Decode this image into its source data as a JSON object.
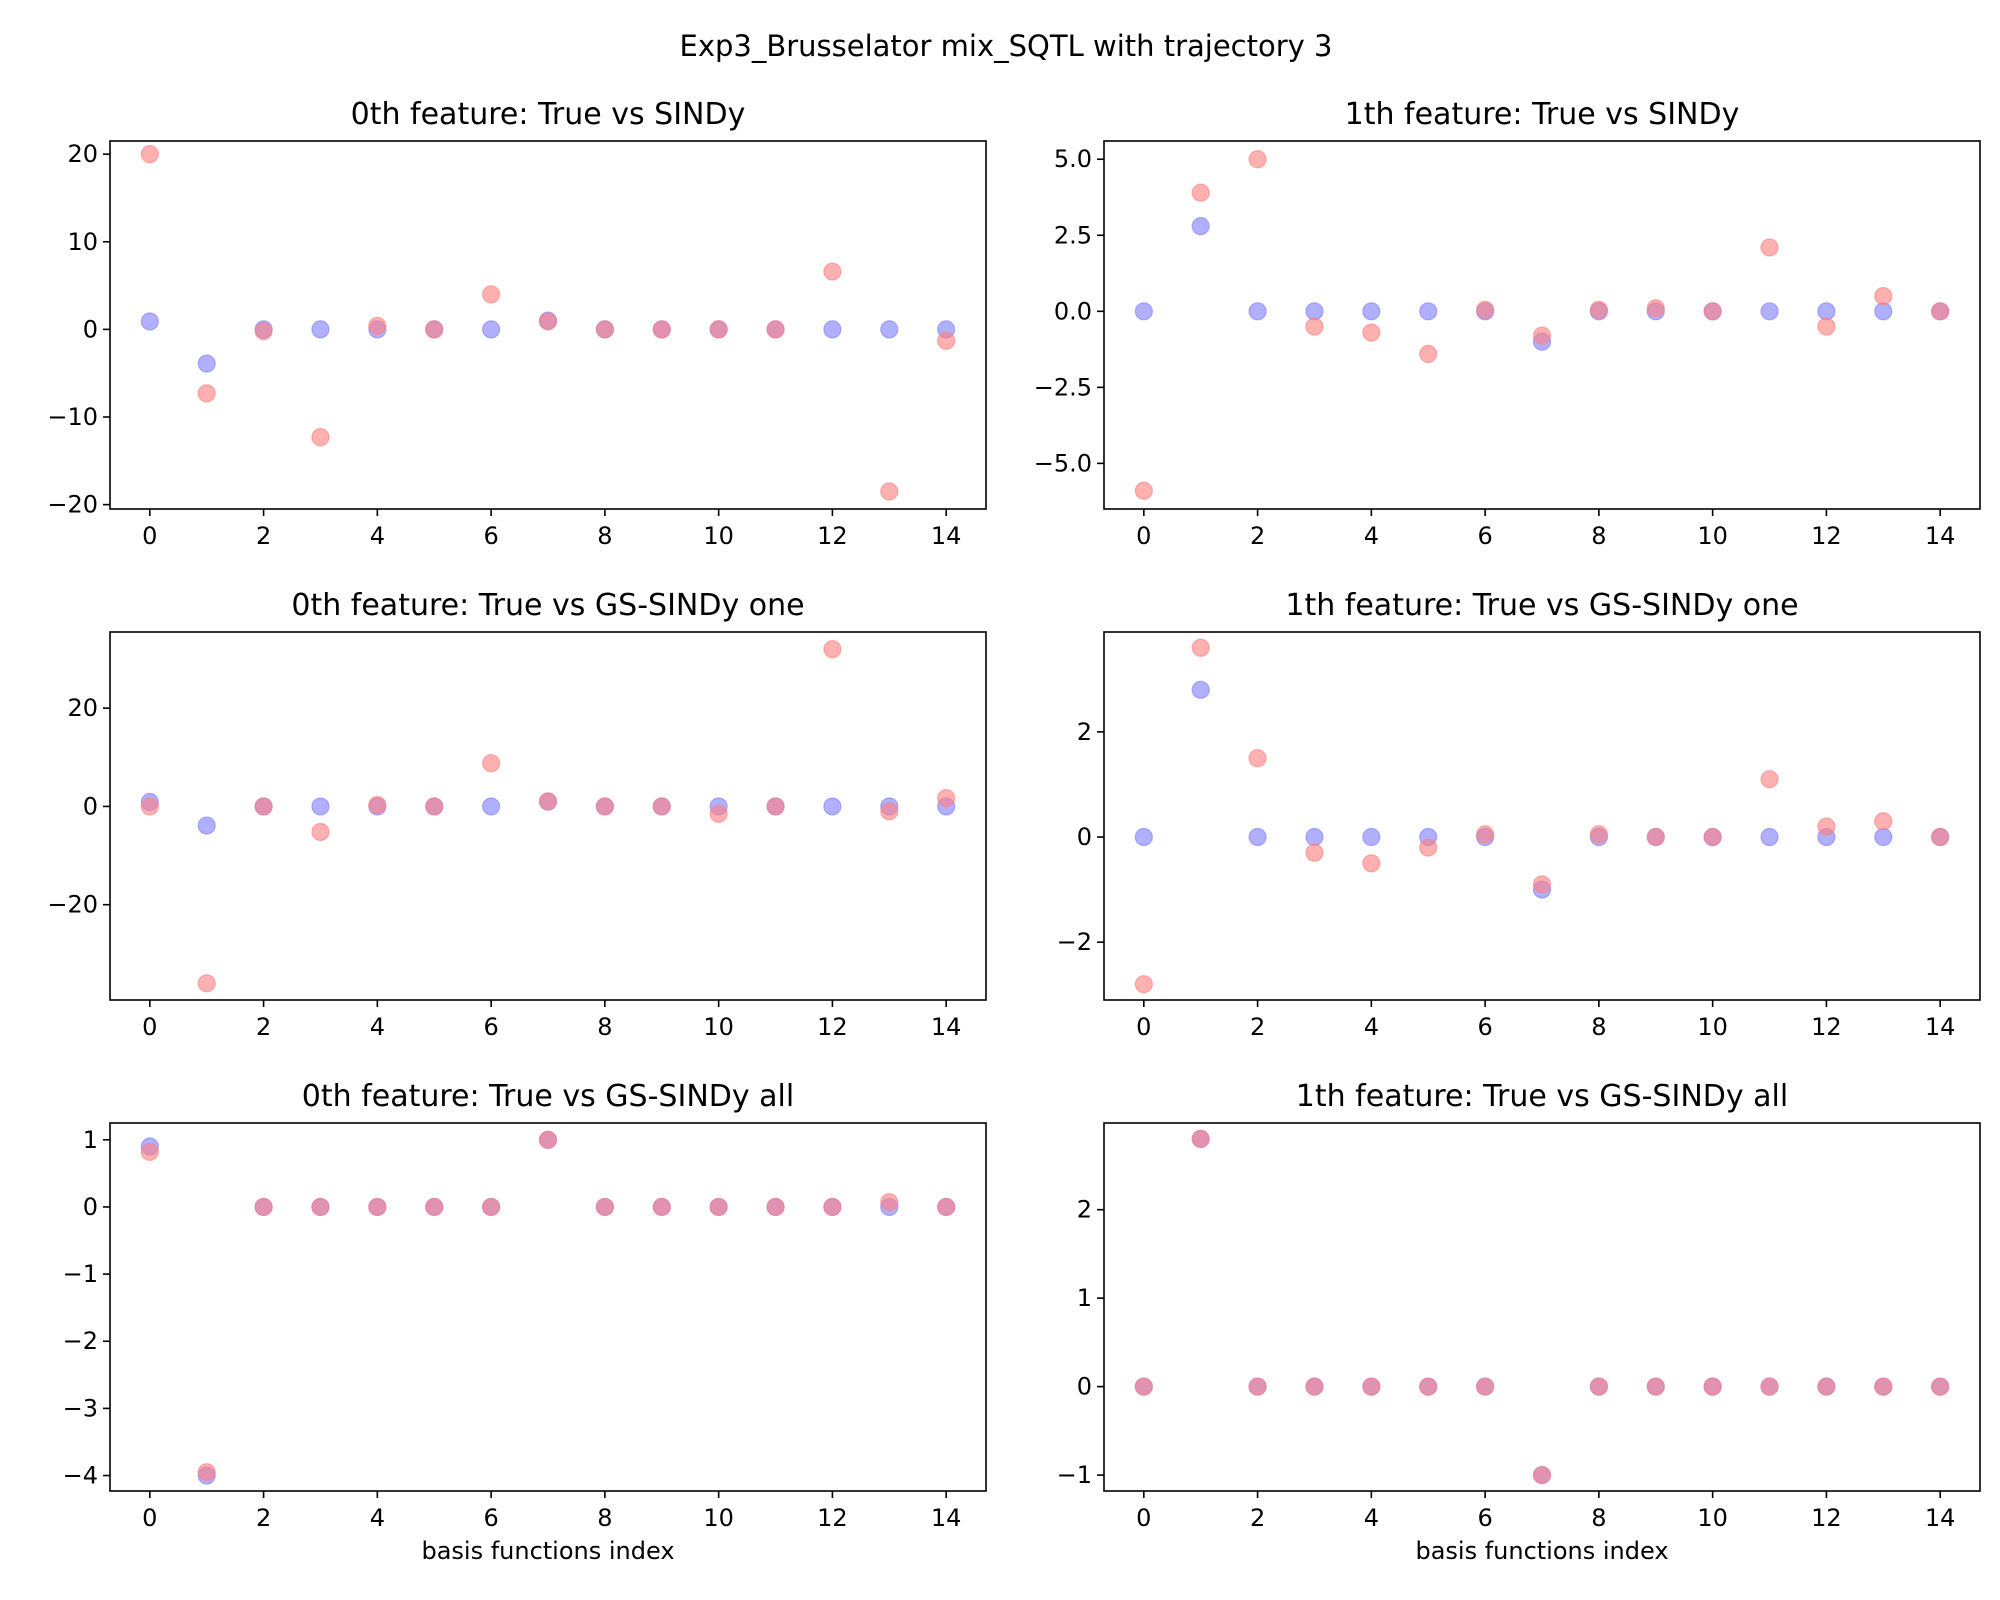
{
  "suptitle": "Exp3_Brusselator mix_SQTL with trajectory 3",
  "colors": {
    "true_series": "#8080ff",
    "model_series": "#ff8080"
  },
  "chart_data": [
    {
      "type": "scatter",
      "title": "0th feature: True vs SINDy",
      "xlabel": "",
      "x": [
        0,
        1,
        2,
        3,
        4,
        5,
        6,
        7,
        8,
        9,
        10,
        11,
        12,
        13,
        14
      ],
      "xticks": [
        0,
        2,
        4,
        6,
        8,
        10,
        12,
        14
      ],
      "xlim": [
        -0.7,
        14.7
      ],
      "yticks": [
        -20,
        -10,
        0,
        10,
        20
      ],
      "ylim": [
        -20.5,
        21.5
      ],
      "series": [
        {
          "values": [
            0.9,
            -3.9,
            0,
            0,
            0,
            0,
            0,
            1,
            0,
            0,
            0,
            0,
            0,
            0,
            0
          ],
          "color": "#8080ff"
        },
        {
          "values": [
            20,
            -7.3,
            -0.2,
            -12.3,
            0.4,
            0,
            4,
            0.9,
            0,
            0,
            0,
            0,
            6.6,
            -18.5,
            -1.3
          ],
          "color": "#ff8080"
        }
      ]
    },
    {
      "type": "scatter",
      "title": "1th feature: True vs SINDy",
      "xlabel": "",
      "x": [
        0,
        1,
        2,
        3,
        4,
        5,
        6,
        7,
        8,
        9,
        10,
        11,
        12,
        13,
        14
      ],
      "xticks": [
        0,
        2,
        4,
        6,
        8,
        10,
        12,
        14
      ],
      "xlim": [
        -0.7,
        14.7
      ],
      "yticks": [
        -5.0,
        -2.5,
        0.0,
        2.5,
        5.0
      ],
      "ytick_labels": [
        "−5.0",
        "−2.5",
        "0.0",
        "2.5",
        "5.0"
      ],
      "ylim": [
        -6.5,
        5.6
      ],
      "series": [
        {
          "values": [
            0,
            2.8,
            0,
            0,
            0,
            0,
            0,
            -1,
            0,
            0,
            0,
            0,
            0,
            0,
            0
          ],
          "color": "#8080ff"
        },
        {
          "values": [
            -5.9,
            3.9,
            5.0,
            -0.5,
            -0.7,
            -1.4,
            0.05,
            -0.8,
            0.05,
            0.1,
            0,
            2.1,
            -0.5,
            0.5,
            0
          ],
          "color": "#ff8080"
        }
      ]
    },
    {
      "type": "scatter",
      "title": "0th feature: True vs GS-SINDy one",
      "xlabel": "",
      "x": [
        0,
        1,
        2,
        3,
        4,
        5,
        6,
        7,
        8,
        9,
        10,
        11,
        12,
        13,
        14
      ],
      "xticks": [
        0,
        2,
        4,
        6,
        8,
        10,
        12,
        14
      ],
      "xlim": [
        -0.7,
        14.7
      ],
      "yticks": [
        -20,
        0,
        20
      ],
      "ylim": [
        -39.4,
        35.5
      ],
      "series": [
        {
          "values": [
            0.9,
            -3.9,
            0,
            0,
            0,
            0,
            0,
            1,
            0,
            0,
            0,
            0,
            0,
            0,
            0
          ],
          "color": "#8080ff"
        },
        {
          "values": [
            0,
            -36,
            0,
            -5.2,
            0.3,
            0,
            8.8,
            1,
            0,
            0,
            -1.5,
            0,
            32,
            -1,
            1.7
          ],
          "color": "#ff8080"
        }
      ]
    },
    {
      "type": "scatter",
      "title": "1th feature: True vs GS-SINDy one",
      "xlabel": "",
      "x": [
        0,
        1,
        2,
        3,
        4,
        5,
        6,
        7,
        8,
        9,
        10,
        11,
        12,
        13,
        14
      ],
      "xticks": [
        0,
        2,
        4,
        6,
        8,
        10,
        12,
        14
      ],
      "xlim": [
        -0.7,
        14.7
      ],
      "yticks": [
        -2,
        0,
        2
      ],
      "ylim": [
        -3.1,
        3.9
      ],
      "series": [
        {
          "values": [
            0,
            2.8,
            0,
            0,
            0,
            0,
            0,
            -1,
            0,
            0,
            0,
            0,
            0,
            0,
            0
          ],
          "color": "#8080ff"
        },
        {
          "values": [
            -2.8,
            3.6,
            1.5,
            -0.3,
            -0.5,
            -0.2,
            0.05,
            -0.9,
            0.05,
            0,
            0,
            1.1,
            0.2,
            0.3,
            0
          ],
          "color": "#ff8080"
        }
      ]
    },
    {
      "type": "scatter",
      "title": "0th feature: True vs GS-SINDy all",
      "xlabel": "basis functions index",
      "x": [
        0,
        1,
        2,
        3,
        4,
        5,
        6,
        7,
        8,
        9,
        10,
        11,
        12,
        13,
        14
      ],
      "xticks": [
        0,
        2,
        4,
        6,
        8,
        10,
        12,
        14
      ],
      "xlim": [
        -0.7,
        14.7
      ],
      "yticks": [
        -4,
        -3,
        -2,
        -1,
        0,
        1
      ],
      "ylim": [
        -4.23,
        1.25
      ],
      "series": [
        {
          "values": [
            0.9,
            -4,
            0,
            0,
            0,
            0,
            0,
            1,
            0,
            0,
            0,
            0,
            0,
            0,
            0
          ],
          "color": "#8080ff"
        },
        {
          "values": [
            0.82,
            -3.95,
            0,
            0,
            0,
            0,
            0,
            1,
            0,
            0,
            0,
            0,
            0,
            0.07,
            0
          ],
          "color": "#ff8080"
        }
      ]
    },
    {
      "type": "scatter",
      "title": "1th feature: True vs GS-SINDy all",
      "xlabel": "basis functions index",
      "x": [
        0,
        1,
        2,
        3,
        4,
        5,
        6,
        7,
        8,
        9,
        10,
        11,
        12,
        13,
        14
      ],
      "xticks": [
        0,
        2,
        4,
        6,
        8,
        10,
        12,
        14
      ],
      "xlim": [
        -0.7,
        14.7
      ],
      "yticks": [
        -1,
        0,
        1,
        2
      ],
      "ylim": [
        -1.18,
        2.98
      ],
      "series": [
        {
          "values": [
            0,
            2.8,
            0,
            0,
            0,
            0,
            0,
            -1,
            0,
            0,
            0,
            0,
            0,
            0,
            0
          ],
          "color": "#8080ff"
        },
        {
          "values": [
            0,
            2.8,
            0,
            0,
            0,
            0,
            0,
            -1,
            0,
            0,
            0,
            0,
            0,
            0,
            0
          ],
          "color": "#ff8080"
        }
      ]
    }
  ]
}
